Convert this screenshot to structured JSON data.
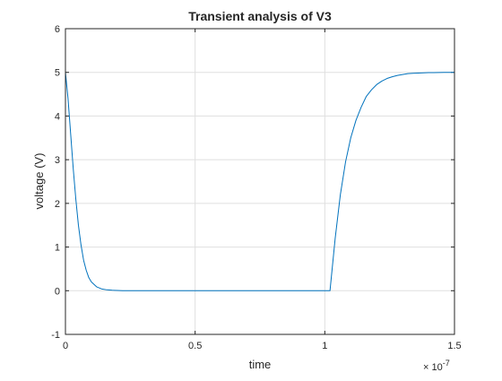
{
  "chart_data": {
    "type": "line",
    "title": "Transient analysis of V3",
    "xlabel": "time",
    "ylabel": "voltage (V)",
    "x_multiplier": {
      "base": "× 10",
      "exponent": "-7"
    },
    "xlim": [
      0,
      1.5
    ],
    "ylim": [
      -1,
      6
    ],
    "x_ticks": [
      0,
      0.5,
      1,
      1.5
    ],
    "x_tick_labels": [
      "0",
      "0.5",
      "1",
      "1.5"
    ],
    "y_ticks": [
      -1,
      0,
      1,
      2,
      3,
      4,
      5,
      6
    ],
    "y_tick_labels": [
      "-1",
      "0",
      "1",
      "2",
      "3",
      "4",
      "5",
      "6"
    ],
    "grid": true,
    "series": [
      {
        "color": "#0072BD",
        "x": [
          0,
          0.01,
          0.02,
          0.03,
          0.04,
          0.05,
          0.06,
          0.07,
          0.08,
          0.09,
          0.1,
          0.12,
          0.14,
          0.16,
          0.18,
          0.2,
          0.22,
          0.25,
          0.3,
          0.4,
          0.5,
          0.6,
          0.7,
          0.8,
          0.9,
          1.0,
          1.015,
          1.02,
          1.04,
          1.06,
          1.08,
          1.1,
          1.12,
          1.14,
          1.16,
          1.18,
          1.2,
          1.22,
          1.24,
          1.26,
          1.28,
          1.3,
          1.32,
          1.34,
          1.36,
          1.38,
          1.4,
          1.42,
          1.44,
          1.46,
          1.48,
          1.5
        ],
        "y": [
          5.0,
          4.4,
          3.6,
          2.8,
          2.1,
          1.5,
          1.05,
          0.7,
          0.47,
          0.3,
          0.2,
          0.09,
          0.04,
          0.02,
          0.01,
          0.005,
          0.0,
          0.0,
          0.0,
          0.0,
          0.0,
          0.0,
          0.0,
          0.0,
          0.0,
          0.0,
          0.0,
          0.0,
          1.2,
          2.2,
          2.95,
          3.5,
          3.9,
          4.2,
          4.45,
          4.6,
          4.72,
          4.8,
          4.86,
          4.9,
          4.93,
          4.95,
          4.97,
          4.98,
          4.985,
          4.99,
          4.993,
          4.995,
          4.997,
          4.998,
          4.999,
          5.0
        ]
      }
    ]
  }
}
